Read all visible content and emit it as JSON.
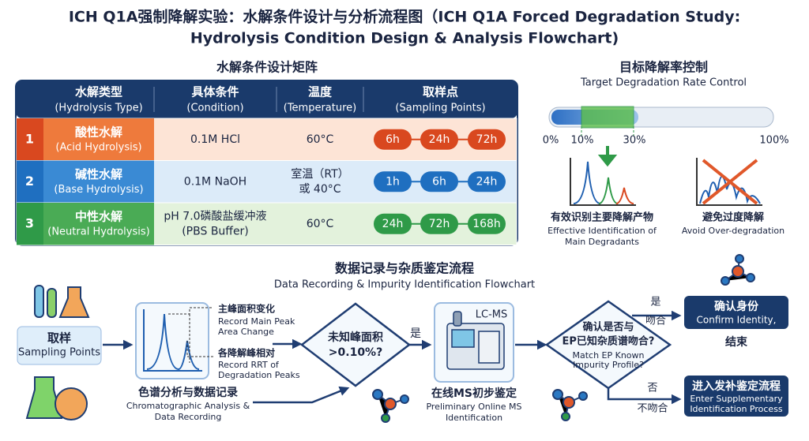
{
  "title": [
    "ICH Q1A强制降解实验：水解条件设计与分析流程图（ICH Q1A Forced Degradation Study:",
    "Hydrolysis Condition Design & Analysis Flowchart)"
  ],
  "matrix": {
    "title": "水解条件设计矩阵",
    "headers": [
      [
        "水解类型",
        "(Hydrolysis Type)"
      ],
      [
        "具体条件",
        "(Condition)"
      ],
      [
        "温度",
        "(Temperature)"
      ],
      [
        "取样点",
        "(Sampling Points)"
      ]
    ],
    "rows": [
      {
        "index": "1",
        "type": [
          "酸性水解",
          "(Acid Hydrolysis)"
        ],
        "condition": [
          "0.1M HCl"
        ],
        "temperature": [
          "60°C"
        ],
        "sampling": [
          "6h",
          "24h",
          "72h"
        ]
      },
      {
        "index": "2",
        "type": [
          "碱性水解",
          "(Base Hydrolysis)"
        ],
        "condition": [
          "0.1M NaOH"
        ],
        "temperature": [
          "室温（RT）",
          "或 40°C"
        ],
        "sampling": [
          "1h",
          "6h",
          "24h"
        ]
      },
      {
        "index": "3",
        "type": [
          "中性水解",
          "(Neutral Hydrolysis)"
        ],
        "condition": [
          "pH 7.0磷酸盐缓冲液",
          "(PBS Buffer)"
        ],
        "temperature": [
          "60°C"
        ],
        "sampling": [
          "24h",
          "72h",
          "168h"
        ]
      }
    ]
  },
  "target": {
    "title": "目标降解率控制",
    "subtitle": "Target Degradation Rate Control",
    "scale": [
      "0%",
      "10%",
      "30%",
      "100%"
    ],
    "effective": {
      "label": "有效识别主要降解产物",
      "sub": [
        "Effective Identification of",
        "Main Degradants"
      ]
    },
    "avoid": {
      "label": "避免过度降解",
      "sub": [
        "Avoid Over-degradation"
      ]
    }
  },
  "flow": {
    "title": "数据记录与杂质鉴定流程",
    "subtitle": "Data Recording & Impurity Identification Flowchart",
    "sampling": {
      "label": "取样",
      "sub": "Sampling Points"
    },
    "chromatography": {
      "label": "色谱分析与数据记录",
      "sub": [
        "Chromatographic Analysis &",
        "Data Recording"
      ],
      "notes": [
        [
          "主峰面积变化",
          "Record Main Peak",
          "Area Change"
        ],
        [
          "各降解峰相对",
          "Record RRT of",
          "Degradation Peaks"
        ]
      ]
    },
    "decision1": {
      "text": [
        "未知峰面积",
        ">0.10%?"
      ],
      "yes": "是"
    },
    "lcms": {
      "instrument": "LC-MS",
      "label": "在线MS初步鉴定",
      "sub": [
        "Preliminary Online MS",
        "Identification"
      ]
    },
    "decision2": {
      "text": [
        "确认是否与",
        "EP已知杂质谱吻合?"
      ],
      "sub": [
        "Match EP Known",
        "Impurity Profile?"
      ],
      "yes": [
        "是",
        "吻合"
      ],
      "no": [
        "否",
        "不吻合"
      ]
    },
    "confirm": {
      "label": "确认身份",
      "sub": "Confirm Identity,",
      "end": "结束"
    },
    "supplementary": {
      "label": "进入发补鉴定流程",
      "sub": [
        "Enter Supplementary",
        "Identification Process"
      ]
    }
  }
}
